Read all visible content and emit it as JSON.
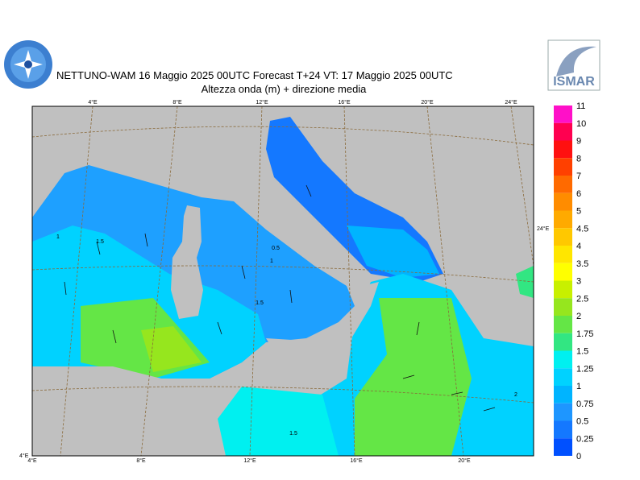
{
  "header": {
    "title_line1": "NETTUNO-WAM 16   Maggio  2025 00UTC Forecast T+24 VT: 17   Maggio  2025 00UTC",
    "title_line2": "Altezza onda (m) + direzione media",
    "logo_text": "ISMAR"
  },
  "map": {
    "top_lon_labels": [
      "4°E",
      "8°E",
      "12°E",
      "16°E",
      "20°E",
      "24°E"
    ],
    "bottom_lon_labels": [
      "4°E",
      "8°E",
      "12°E",
      "16°E",
      "20°E"
    ],
    "right_label": "24°E",
    "corner_label": "4°E",
    "contour_labels": [
      "1",
      "1.5",
      "0.5",
      "1",
      "1.5",
      "1.5",
      "2"
    ]
  },
  "legend": {
    "labels": [
      "11",
      "10",
      "9",
      "8",
      "7",
      "6",
      "5",
      "4.5",
      "4",
      "3.5",
      "3",
      "2.5",
      "2",
      "1.75",
      "1.5",
      "1.25",
      "1",
      "0.75",
      "0.5",
      "0.25",
      "0"
    ],
    "colors": [
      "#ff10c8",
      "#ff0050",
      "#ff1010",
      "#ff4000",
      "#ff6a00",
      "#ff8c00",
      "#ffaa00",
      "#ffc800",
      "#ffe600",
      "#ffff00",
      "#c8f000",
      "#96e61e",
      "#64e646",
      "#32e682",
      "#00f0f0",
      "#00d2ff",
      "#00b4ff",
      "#1e96ff",
      "#1478ff",
      "#0050ff"
    ]
  }
}
